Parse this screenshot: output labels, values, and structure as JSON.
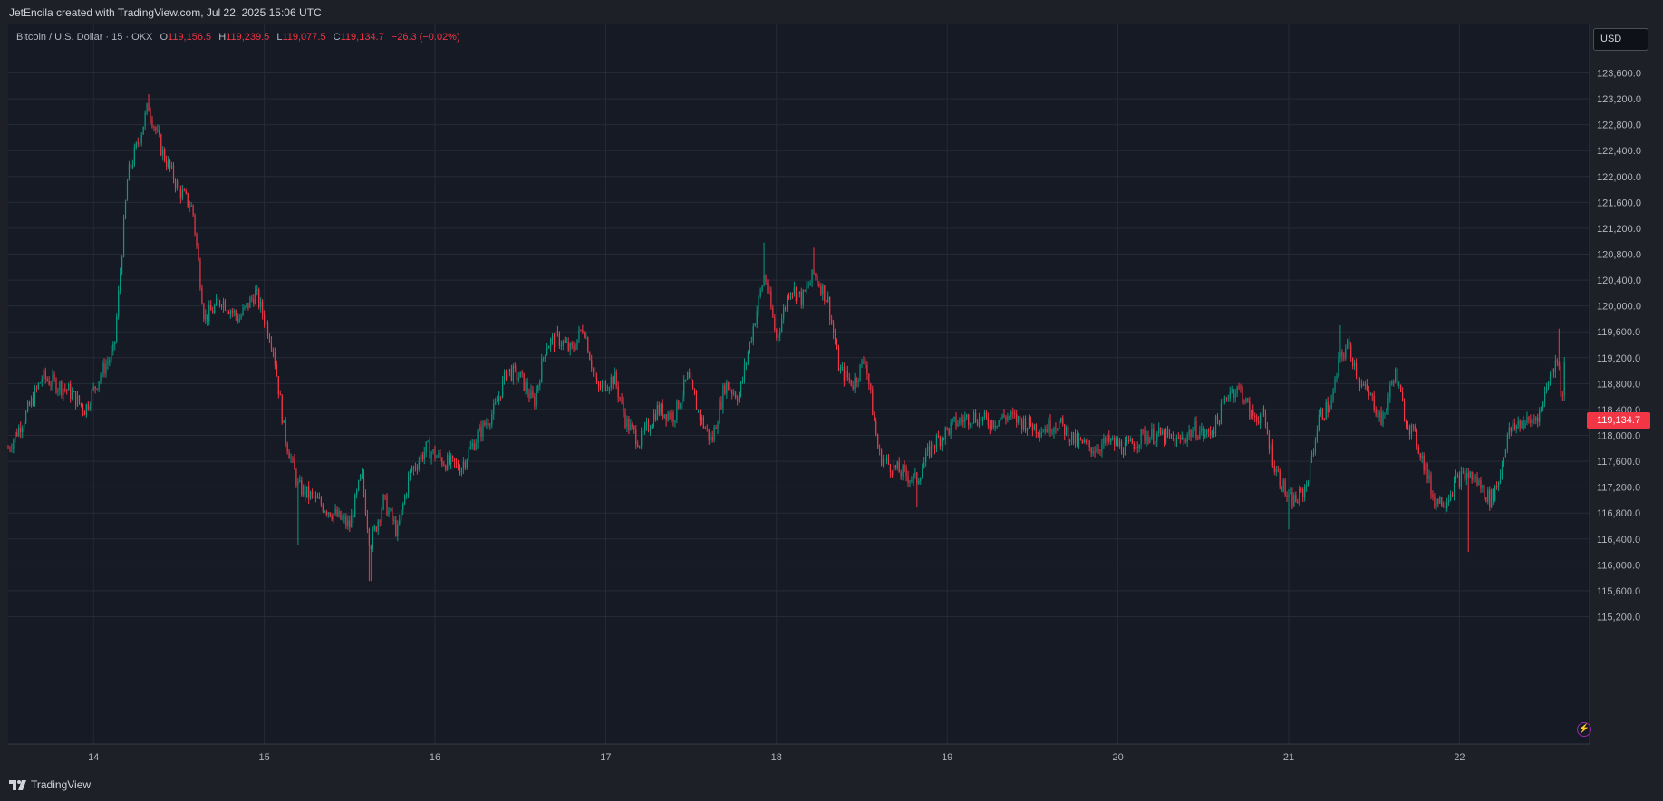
{
  "header": {
    "attribution": "JetEncila created with TradingView.com, Jul 22, 2025 15:06 UTC"
  },
  "legend": {
    "symbol": "Bitcoin / U.S. Dollar · 15 · OKX",
    "open_label": "O",
    "open": "119,156.5",
    "high_label": "H",
    "high": "119,239.5",
    "low_label": "L",
    "low": "119,077.5",
    "close_label": "C",
    "close": "119,134.7",
    "change": "−26.3 (−0.02%)"
  },
  "currency_button": "USD",
  "current_price_tag": "119,134.7",
  "footer": {
    "brand": "TradingView"
  },
  "colors": {
    "background": "#161a25",
    "grid": "#252a36",
    "up": "#089981",
    "down": "#f23645",
    "text": "#d1d4dc"
  },
  "icons": {
    "logo": "tradingview-logo-icon",
    "alert": "lightning-bolt-icon"
  },
  "chart_data": {
    "type": "candlestick",
    "symbol": "Bitcoin / U.S. Dollar",
    "interval": "15",
    "exchange": "OKX",
    "currency": "USD",
    "ylim": [
      114900,
      123900
    ],
    "y_ticks": [
      "115,200.0",
      "115,600.0",
      "116,000.0",
      "116,400.0",
      "116,800.0",
      "117,200.0",
      "117,600.0",
      "118,000.0",
      "118,400.0",
      "118,800.0",
      "119,200.0",
      "119,600.0",
      "120,000.0",
      "120,400.0",
      "120,800.0",
      "121,200.0",
      "121,600.0",
      "122,000.0",
      "122,400.0",
      "122,800.0",
      "123,200.0",
      "123,600.0"
    ],
    "x_ticks": [
      "14",
      "15",
      "16",
      "17",
      "18",
      "19",
      "20",
      "21",
      "22"
    ],
    "xlim_days": [
      13.5,
      22.63
    ],
    "current_price": 119134.7,
    "grid": true,
    "close_path": [
      {
        "t": 13.5,
        "p": 117800
      },
      {
        "t": 13.6,
        "p": 118300
      },
      {
        "t": 13.7,
        "p": 118900
      },
      {
        "t": 13.85,
        "p": 118700
      },
      {
        "t": 13.95,
        "p": 118400
      },
      {
        "t": 14.05,
        "p": 119000
      },
      {
        "t": 14.12,
        "p": 119300
      },
      {
        "t": 14.2,
        "p": 122000
      },
      {
        "t": 14.28,
        "p": 122700
      },
      {
        "t": 14.32,
        "p": 123100
      },
      {
        "t": 14.4,
        "p": 122400
      },
      {
        "t": 14.5,
        "p": 121800
      },
      {
        "t": 14.58,
        "p": 121500
      },
      {
        "t": 14.65,
        "p": 119800
      },
      {
        "t": 14.75,
        "p": 120100
      },
      {
        "t": 14.85,
        "p": 119800
      },
      {
        "t": 14.95,
        "p": 120200
      },
      {
        "t": 15.05,
        "p": 119400
      },
      {
        "t": 15.12,
        "p": 118000
      },
      {
        "t": 15.2,
        "p": 117200
      },
      {
        "t": 15.3,
        "p": 117000
      },
      {
        "t": 15.4,
        "p": 116800
      },
      {
        "t": 15.5,
        "p": 116600
      },
      {
        "t": 15.57,
        "p": 117400
      },
      {
        "t": 15.62,
        "p": 116300
      },
      {
        "t": 15.7,
        "p": 117000
      },
      {
        "t": 15.78,
        "p": 116500
      },
      {
        "t": 15.85,
        "p": 117400
      },
      {
        "t": 15.95,
        "p": 117800
      },
      {
        "t": 16.05,
        "p": 117600
      },
      {
        "t": 16.15,
        "p": 117500
      },
      {
        "t": 16.25,
        "p": 118000
      },
      {
        "t": 16.35,
        "p": 118400
      },
      {
        "t": 16.42,
        "p": 119000
      },
      {
        "t": 16.5,
        "p": 118900
      },
      {
        "t": 16.58,
        "p": 118500
      },
      {
        "t": 16.65,
        "p": 119400
      },
      {
        "t": 16.72,
        "p": 119500
      },
      {
        "t": 16.8,
        "p": 119300
      },
      {
        "t": 16.87,
        "p": 119700
      },
      {
        "t": 16.95,
        "p": 118700
      },
      {
        "t": 17.05,
        "p": 118900
      },
      {
        "t": 17.12,
        "p": 118200
      },
      {
        "t": 17.2,
        "p": 117900
      },
      {
        "t": 17.3,
        "p": 118400
      },
      {
        "t": 17.4,
        "p": 118300
      },
      {
        "t": 17.48,
        "p": 118900
      },
      {
        "t": 17.55,
        "p": 118300
      },
      {
        "t": 17.62,
        "p": 117900
      },
      {
        "t": 17.7,
        "p": 118800
      },
      {
        "t": 17.78,
        "p": 118600
      },
      {
        "t": 17.85,
        "p": 119500
      },
      {
        "t": 17.93,
        "p": 120500
      },
      {
        "t": 18.0,
        "p": 119500
      },
      {
        "t": 18.08,
        "p": 120300
      },
      {
        "t": 18.15,
        "p": 120100
      },
      {
        "t": 18.22,
        "p": 120500
      },
      {
        "t": 18.3,
        "p": 120100
      },
      {
        "t": 18.37,
        "p": 119000
      },
      {
        "t": 18.45,
        "p": 118800
      },
      {
        "t": 18.52,
        "p": 119200
      },
      {
        "t": 18.6,
        "p": 117700
      },
      {
        "t": 18.68,
        "p": 117500
      },
      {
        "t": 18.75,
        "p": 117400
      },
      {
        "t": 18.82,
        "p": 117300
      },
      {
        "t": 18.9,
        "p": 117800
      },
      {
        "t": 18.97,
        "p": 118000
      },
      {
        "t": 19.05,
        "p": 118200
      },
      {
        "t": 19.15,
        "p": 118300
      },
      {
        "t": 19.25,
        "p": 118200
      },
      {
        "t": 19.35,
        "p": 118300
      },
      {
        "t": 19.45,
        "p": 118200
      },
      {
        "t": 19.55,
        "p": 118100
      },
      {
        "t": 19.65,
        "p": 118200
      },
      {
        "t": 19.75,
        "p": 117900
      },
      {
        "t": 19.85,
        "p": 117800
      },
      {
        "t": 19.95,
        "p": 117900
      },
      {
        "t": 20.05,
        "p": 117800
      },
      {
        "t": 20.15,
        "p": 118000
      },
      {
        "t": 20.25,
        "p": 118000
      },
      {
        "t": 20.35,
        "p": 117900
      },
      {
        "t": 20.45,
        "p": 118100
      },
      {
        "t": 20.52,
        "p": 118000
      },
      {
        "t": 20.58,
        "p": 118200
      },
      {
        "t": 20.65,
        "p": 118700
      },
      {
        "t": 20.72,
        "p": 118700
      },
      {
        "t": 20.78,
        "p": 118300
      },
      {
        "t": 20.85,
        "p": 118300
      },
      {
        "t": 20.92,
        "p": 117500
      },
      {
        "t": 21.0,
        "p": 117000
      },
      {
        "t": 21.05,
        "p": 117000
      },
      {
        "t": 21.1,
        "p": 117200
      },
      {
        "t": 21.18,
        "p": 118300
      },
      {
        "t": 21.25,
        "p": 118500
      },
      {
        "t": 21.3,
        "p": 119200
      },
      {
        "t": 21.35,
        "p": 119400
      },
      {
        "t": 21.42,
        "p": 118800
      },
      {
        "t": 21.5,
        "p": 118500
      },
      {
        "t": 21.55,
        "p": 118200
      },
      {
        "t": 21.62,
        "p": 119000
      },
      {
        "t": 21.68,
        "p": 118300
      },
      {
        "t": 21.75,
        "p": 117900
      },
      {
        "t": 21.8,
        "p": 117500
      },
      {
        "t": 21.85,
        "p": 117000
      },
      {
        "t": 21.92,
        "p": 117000
      },
      {
        "t": 21.98,
        "p": 117300
      },
      {
        "t": 22.05,
        "p": 117400
      },
      {
        "t": 22.1,
        "p": 117300
      },
      {
        "t": 22.18,
        "p": 117000
      },
      {
        "t": 22.23,
        "p": 117300
      },
      {
        "t": 22.28,
        "p": 118000
      },
      {
        "t": 22.35,
        "p": 118200
      },
      {
        "t": 22.42,
        "p": 118200
      },
      {
        "t": 22.48,
        "p": 118400
      },
      {
        "t": 22.52,
        "p": 118900
      },
      {
        "t": 22.55,
        "p": 119000
      },
      {
        "t": 22.58,
        "p": 119300
      },
      {
        "t": 22.6,
        "p": 118400
      },
      {
        "t": 22.62,
        "p": 119134.7
      }
    ],
    "spikes": [
      {
        "t": 14.32,
        "p": 123270
      },
      {
        "t": 15.62,
        "p": 115750
      },
      {
        "t": 17.93,
        "p": 120980
      },
      {
        "t": 18.22,
        "p": 120900
      },
      {
        "t": 21.3,
        "p": 119700
      },
      {
        "t": 21.0,
        "p": 116550
      },
      {
        "t": 22.05,
        "p": 116200
      },
      {
        "t": 22.58,
        "p": 119650
      },
      {
        "t": 18.82,
        "p": 116900
      },
      {
        "t": 15.2,
        "p": 116300
      }
    ]
  }
}
